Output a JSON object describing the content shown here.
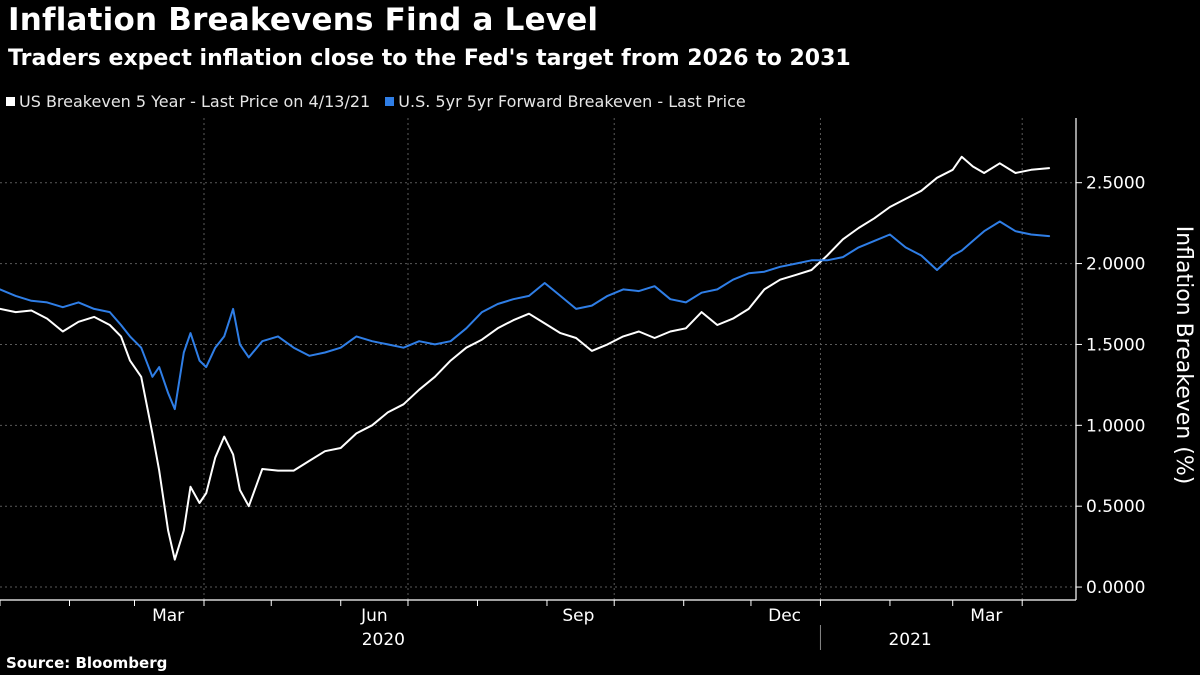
{
  "colors": {
    "background": "#000000",
    "series1": "#ffffff",
    "series2": "#2f7ee6",
    "grid": "#5a5a5a"
  },
  "chart_data": {
    "type": "line",
    "title": "Inflation Breakevens Find a Level",
    "subtitle": "Traders expect inflation close to the Fed's target from 2026 to 2031",
    "ylabel": "Inflation Breakeven (%)",
    "ylim": [
      -0.08,
      2.9
    ],
    "xlim": [
      "2020-01-01",
      "2021-04-25"
    ],
    "yticks": [
      "0.0000",
      "0.5000",
      "1.0000",
      "1.5000",
      "2.0000",
      "2.5000"
    ],
    "xticks": [
      {
        "label": "Mar",
        "date": "2020-03-16"
      },
      {
        "label": "Jun",
        "date": "2020-06-16"
      },
      {
        "label": "Sep",
        "date": "2020-09-15"
      },
      {
        "label": "Dec",
        "date": "2020-12-16"
      },
      {
        "label": "Mar",
        "date": "2021-03-16"
      }
    ],
    "years": [
      {
        "label": "2020"
      },
      {
        "label": "2021"
      }
    ],
    "grid": true,
    "legend_position": "top-left",
    "source": "Source: Bloomberg",
    "series": [
      {
        "name": "US Breakeven 5 Year - Last Price on 4/13/21",
        "values": [
          [
            "2020-01-01",
            1.72
          ],
          [
            "2020-01-08",
            1.7
          ],
          [
            "2020-01-15",
            1.71
          ],
          [
            "2020-01-22",
            1.66
          ],
          [
            "2020-01-29",
            1.58
          ],
          [
            "2020-02-05",
            1.64
          ],
          [
            "2020-02-12",
            1.67
          ],
          [
            "2020-02-19",
            1.62
          ],
          [
            "2020-02-24",
            1.55
          ],
          [
            "2020-02-28",
            1.4
          ],
          [
            "2020-03-04",
            1.3
          ],
          [
            "2020-03-09",
            0.95
          ],
          [
            "2020-03-12",
            0.72
          ],
          [
            "2020-03-16",
            0.35
          ],
          [
            "2020-03-19",
            0.17
          ],
          [
            "2020-03-23",
            0.35
          ],
          [
            "2020-03-26",
            0.62
          ],
          [
            "2020-03-30",
            0.52
          ],
          [
            "2020-04-02",
            0.58
          ],
          [
            "2020-04-06",
            0.8
          ],
          [
            "2020-04-10",
            0.93
          ],
          [
            "2020-04-14",
            0.82
          ],
          [
            "2020-04-17",
            0.6
          ],
          [
            "2020-04-21",
            0.5
          ],
          [
            "2020-04-27",
            0.73
          ],
          [
            "2020-05-04",
            0.72
          ],
          [
            "2020-05-11",
            0.72
          ],
          [
            "2020-05-18",
            0.78
          ],
          [
            "2020-05-25",
            0.84
          ],
          [
            "2020-06-01",
            0.86
          ],
          [
            "2020-06-08",
            0.95
          ],
          [
            "2020-06-15",
            1.0
          ],
          [
            "2020-06-22",
            1.08
          ],
          [
            "2020-06-29",
            1.13
          ],
          [
            "2020-07-06",
            1.22
          ],
          [
            "2020-07-13",
            1.3
          ],
          [
            "2020-07-20",
            1.4
          ],
          [
            "2020-07-27",
            1.48
          ],
          [
            "2020-08-03",
            1.53
          ],
          [
            "2020-08-10",
            1.6
          ],
          [
            "2020-08-17",
            1.65
          ],
          [
            "2020-08-24",
            1.69
          ],
          [
            "2020-08-31",
            1.63
          ],
          [
            "2020-09-07",
            1.57
          ],
          [
            "2020-09-14",
            1.54
          ],
          [
            "2020-09-21",
            1.46
          ],
          [
            "2020-09-28",
            1.5
          ],
          [
            "2020-10-05",
            1.55
          ],
          [
            "2020-10-12",
            1.58
          ],
          [
            "2020-10-19",
            1.54
          ],
          [
            "2020-10-26",
            1.58
          ],
          [
            "2020-11-02",
            1.6
          ],
          [
            "2020-11-09",
            1.7
          ],
          [
            "2020-11-16",
            1.62
          ],
          [
            "2020-11-23",
            1.66
          ],
          [
            "2020-11-30",
            1.72
          ],
          [
            "2020-12-07",
            1.84
          ],
          [
            "2020-12-14",
            1.9
          ],
          [
            "2020-12-21",
            1.93
          ],
          [
            "2020-12-28",
            1.96
          ],
          [
            "2021-01-04",
            2.05
          ],
          [
            "2021-01-11",
            2.15
          ],
          [
            "2021-01-18",
            2.22
          ],
          [
            "2021-01-25",
            2.28
          ],
          [
            "2021-02-01",
            2.35
          ],
          [
            "2021-02-08",
            2.4
          ],
          [
            "2021-02-15",
            2.45
          ],
          [
            "2021-02-22",
            2.53
          ],
          [
            "2021-03-01",
            2.58
          ],
          [
            "2021-03-05",
            2.66
          ],
          [
            "2021-03-10",
            2.6
          ],
          [
            "2021-03-15",
            2.56
          ],
          [
            "2021-03-22",
            2.62
          ],
          [
            "2021-03-29",
            2.56
          ],
          [
            "2021-04-05",
            2.58
          ],
          [
            "2021-04-13",
            2.59
          ]
        ]
      },
      {
        "name": "U.S. 5yr 5yr Forward Breakeven - Last Price",
        "values": [
          [
            "2020-01-01",
            1.84
          ],
          [
            "2020-01-08",
            1.8
          ],
          [
            "2020-01-15",
            1.77
          ],
          [
            "2020-01-22",
            1.76
          ],
          [
            "2020-01-29",
            1.73
          ],
          [
            "2020-02-05",
            1.76
          ],
          [
            "2020-02-12",
            1.72
          ],
          [
            "2020-02-19",
            1.7
          ],
          [
            "2020-02-24",
            1.62
          ],
          [
            "2020-02-28",
            1.55
          ],
          [
            "2020-03-04",
            1.48
          ],
          [
            "2020-03-09",
            1.3
          ],
          [
            "2020-03-12",
            1.36
          ],
          [
            "2020-03-16",
            1.2
          ],
          [
            "2020-03-19",
            1.1
          ],
          [
            "2020-03-23",
            1.45
          ],
          [
            "2020-03-26",
            1.57
          ],
          [
            "2020-03-30",
            1.4
          ],
          [
            "2020-04-02",
            1.36
          ],
          [
            "2020-04-06",
            1.48
          ],
          [
            "2020-04-10",
            1.55
          ],
          [
            "2020-04-14",
            1.72
          ],
          [
            "2020-04-17",
            1.5
          ],
          [
            "2020-04-21",
            1.42
          ],
          [
            "2020-04-27",
            1.52
          ],
          [
            "2020-05-04",
            1.55
          ],
          [
            "2020-05-11",
            1.48
          ],
          [
            "2020-05-18",
            1.43
          ],
          [
            "2020-05-25",
            1.45
          ],
          [
            "2020-06-01",
            1.48
          ],
          [
            "2020-06-08",
            1.55
          ],
          [
            "2020-06-15",
            1.52
          ],
          [
            "2020-06-22",
            1.5
          ],
          [
            "2020-06-29",
            1.48
          ],
          [
            "2020-07-06",
            1.52
          ],
          [
            "2020-07-13",
            1.5
          ],
          [
            "2020-07-20",
            1.52
          ],
          [
            "2020-07-27",
            1.6
          ],
          [
            "2020-08-03",
            1.7
          ],
          [
            "2020-08-10",
            1.75
          ],
          [
            "2020-08-17",
            1.78
          ],
          [
            "2020-08-24",
            1.8
          ],
          [
            "2020-08-31",
            1.88
          ],
          [
            "2020-09-07",
            1.8
          ],
          [
            "2020-09-14",
            1.72
          ],
          [
            "2020-09-21",
            1.74
          ],
          [
            "2020-09-28",
            1.8
          ],
          [
            "2020-10-05",
            1.84
          ],
          [
            "2020-10-12",
            1.83
          ],
          [
            "2020-10-19",
            1.86
          ],
          [
            "2020-10-26",
            1.78
          ],
          [
            "2020-11-02",
            1.76
          ],
          [
            "2020-11-09",
            1.82
          ],
          [
            "2020-11-16",
            1.84
          ],
          [
            "2020-11-23",
            1.9
          ],
          [
            "2020-11-30",
            1.94
          ],
          [
            "2020-12-07",
            1.95
          ],
          [
            "2020-12-14",
            1.98
          ],
          [
            "2020-12-21",
            2.0
          ],
          [
            "2020-12-28",
            2.02
          ],
          [
            "2021-01-04",
            2.02
          ],
          [
            "2021-01-11",
            2.04
          ],
          [
            "2021-01-18",
            2.1
          ],
          [
            "2021-01-25",
            2.14
          ],
          [
            "2021-02-01",
            2.18
          ],
          [
            "2021-02-08",
            2.1
          ],
          [
            "2021-02-15",
            2.05
          ],
          [
            "2021-02-22",
            1.96
          ],
          [
            "2021-03-01",
            2.05
          ],
          [
            "2021-03-05",
            2.08
          ],
          [
            "2021-03-10",
            2.14
          ],
          [
            "2021-03-15",
            2.2
          ],
          [
            "2021-03-22",
            2.26
          ],
          [
            "2021-03-29",
            2.2
          ],
          [
            "2021-04-05",
            2.18
          ],
          [
            "2021-04-13",
            2.17
          ]
        ]
      }
    ]
  }
}
